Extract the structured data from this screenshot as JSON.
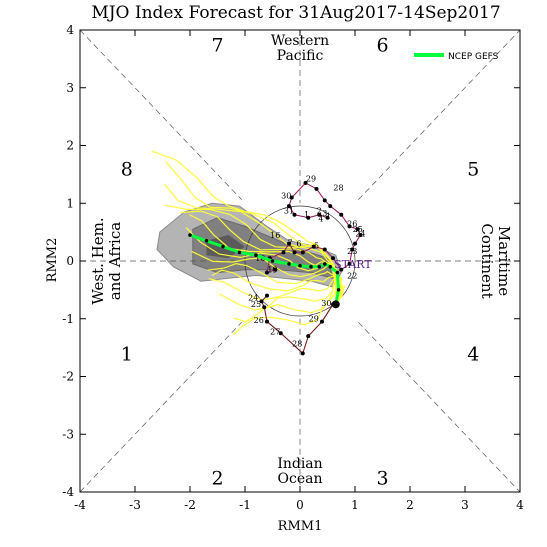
{
  "chart_data": {
    "type": "scatter",
    "title": "MJO Index Forecast for 31Aug2017-14Sep2017",
    "xlabel": "RMM1",
    "ylabel": "RMM2",
    "xlim": [
      -4,
      4
    ],
    "ylim": [
      -4,
      4
    ],
    "xticks": [
      -4,
      -3,
      -2,
      -1,
      0,
      1,
      2,
      3,
      4
    ],
    "yticks": [
      -4,
      -3,
      -2,
      -1,
      0,
      1,
      2,
      3,
      4
    ],
    "grid": false,
    "legend": {
      "position": "top-right",
      "entries": [
        {
          "name": "NCEP GEFS",
          "color": "#00ff3c"
        }
      ]
    },
    "phase_labels": [
      {
        "text": "1",
        "x": -3.15,
        "y": -1.6
      },
      {
        "text": "2",
        "x": -1.5,
        "y": -3.75
      },
      {
        "text": "3",
        "x": 1.5,
        "y": -3.75
      },
      {
        "text": "4",
        "x": 3.15,
        "y": -1.6
      },
      {
        "text": "5",
        "x": 3.15,
        "y": 1.6
      },
      {
        "text": "6",
        "x": 1.5,
        "y": 3.75
      },
      {
        "text": "7",
        "x": -1.5,
        "y": 3.75
      },
      {
        "text": "8",
        "x": -3.15,
        "y": 1.6
      }
    ],
    "region_labels": {
      "top": [
        "Western",
        "Pacific"
      ],
      "bottom": [
        "Indian",
        "Ocean"
      ],
      "left": [
        "West. Hem.",
        "and Africa"
      ],
      "right": [
        "Maritime",
        "Continent"
      ]
    },
    "observed": {
      "color": "#7a1a1a",
      "segments": [
        {
          "color": "#7a1a1a",
          "points": [
            [
              0.6,
              -0.75
            ],
            [
              0.4,
              -1.05
            ],
            [
              0.15,
              -1.3
            ],
            [
              0.05,
              -1.6
            ],
            [
              -0.35,
              -1.25
            ],
            [
              -0.6,
              -1.05
            ],
            [
              -0.65,
              -0.8
            ],
            [
              -0.7,
              -0.7
            ],
            [
              -0.6,
              -0.6
            ]
          ]
        },
        {
          "color": "#9a2060",
          "points": [
            [
              -0.45,
              -0.15
            ],
            [
              -0.6,
              -0.2
            ],
            [
              -0.55,
              0.05
            ],
            [
              -0.3,
              0.15
            ],
            [
              -0.2,
              0.3
            ],
            [
              -0.1,
              0.15
            ],
            [
              0.05,
              0.15
            ],
            [
              0.25,
              0.25
            ],
            [
              0.45,
              0.2
            ],
            [
              0.6,
              0.05
            ],
            [
              0.75,
              -0.15
            ],
            [
              0.9,
              -0.05
            ],
            [
              0.95,
              0.2
            ],
            [
              1.0,
              0.3
            ],
            [
              1.1,
              0.45
            ],
            [
              1.05,
              0.55
            ],
            [
              0.9,
              0.6
            ],
            [
              0.75,
              0.8
            ],
            [
              0.55,
              0.95
            ],
            [
              0.45,
              1.05
            ],
            [
              0.3,
              1.25
            ],
            [
              0.1,
              1.35
            ],
            [
              -0.15,
              1.1
            ],
            [
              -0.2,
              0.95
            ],
            [
              -0.1,
              0.8
            ],
            [
              0.15,
              0.75
            ],
            [
              0.35,
              0.8
            ],
            [
              0.5,
              0.75
            ]
          ]
        }
      ],
      "labels": [
        {
          "text": "30",
          "x": 0.48,
          "y": -0.78
        },
        {
          "text": "29",
          "x": 0.25,
          "y": -1.05
        },
        {
          "text": "28",
          "x": -0.05,
          "y": -1.48
        },
        {
          "text": "27",
          "x": -0.45,
          "y": -1.27
        },
        {
          "text": "26",
          "x": -0.75,
          "y": -1.07
        },
        {
          "text": "25",
          "x": -0.8,
          "y": -0.8
        },
        {
          "text": "24",
          "x": -0.85,
          "y": -0.68
        },
        {
          "text": "22",
          "x": 0.95,
          "y": -0.3
        },
        {
          "text": "23",
          "x": 0.95,
          "y": 0.12
        },
        {
          "text": "24",
          "x": 1.1,
          "y": 0.42
        },
        {
          "text": "25",
          "x": 1.05,
          "y": 0.5
        },
        {
          "text": "26",
          "x": 0.95,
          "y": 0.6
        },
        {
          "text": "1",
          "x": 0.52,
          "y": 0.73
        },
        {
          "text": "2",
          "x": 0.35,
          "y": 0.82
        },
        {
          "text": "3",
          "x": 0.45,
          "y": 0.78
        },
        {
          "text": "4",
          "x": 0.38,
          "y": 0.68
        },
        {
          "text": "5",
          "x": 0.3,
          "y": 0.22
        },
        {
          "text": "6",
          "x": -0.02,
          "y": 0.25
        },
        {
          "text": "7",
          "x": -0.18,
          "y": 0.27
        },
        {
          "text": "16",
          "x": -0.45,
          "y": 0.4
        },
        {
          "text": "10",
          "x": -0.72,
          "y": 0.0
        },
        {
          "text": "19",
          "x": -0.5,
          "y": -0.2
        },
        {
          "text": "28",
          "x": 0.7,
          "y": 1.22
        },
        {
          "text": "29",
          "x": 0.2,
          "y": 1.38
        },
        {
          "text": "30",
          "x": -0.25,
          "y": 1.08
        },
        {
          "text": "31",
          "x": -0.2,
          "y": 0.82
        },
        {
          "text": "1",
          "x": 0.12,
          "y": 0.75
        }
      ]
    },
    "ensemble_mean": {
      "color": "#00ff3c",
      "points": [
        [
          0.65,
          -0.75
        ],
        [
          0.7,
          -0.5
        ],
        [
          0.68,
          -0.2
        ],
        [
          0.55,
          -0.1
        ],
        [
          0.45,
          -0.05
        ],
        [
          0.35,
          -0.1
        ],
        [
          0.2,
          -0.1
        ],
        [
          0.0,
          -0.08
        ],
        [
          -0.2,
          -0.05
        ],
        [
          -0.5,
          0.0
        ],
        [
          -0.8,
          0.1
        ],
        [
          -1.1,
          0.15
        ],
        [
          -1.4,
          0.25
        ],
        [
          -1.7,
          0.35
        ],
        [
          -2.0,
          0.45
        ]
      ]
    },
    "start_label": "START",
    "annotation_legend": "NCEP GEFS"
  }
}
